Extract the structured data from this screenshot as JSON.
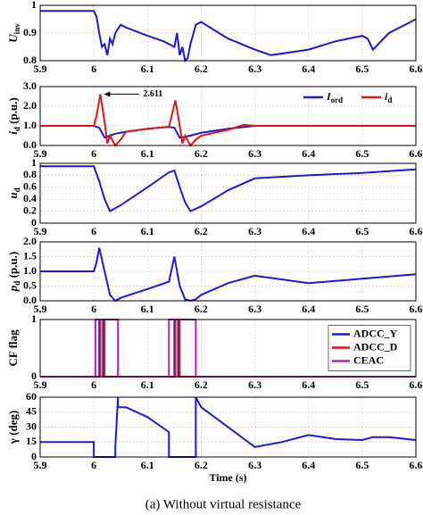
{
  "chart_data": [
    {
      "type": "line",
      "ylabel": {
        "symbol": "U",
        "sub": "inv"
      },
      "xlim": [
        5.9,
        6.6
      ],
      "xticks": [
        5.9,
        6,
        6.1,
        6.2,
        6.3,
        6.4,
        6.5,
        6.6
      ],
      "ylim": [
        0.8,
        1
      ],
      "yticks": [
        0.8,
        0.9,
        1
      ],
      "grid": true,
      "series": [
        {
          "color": "#1a1ad8",
          "x": [
            5.9,
            6.0,
            6.005,
            6.01,
            6.015,
            6.02,
            6.025,
            6.03,
            6.035,
            6.04,
            6.05,
            6.06,
            6.1,
            6.13,
            6.14,
            6.15,
            6.155,
            6.16,
            6.165,
            6.17,
            6.175,
            6.18,
            6.19,
            6.2,
            6.25,
            6.3,
            6.33,
            6.4,
            6.45,
            6.5,
            6.51,
            6.52,
            6.55,
            6.6
          ],
          "values": [
            0.98,
            0.98,
            0.96,
            0.9,
            0.85,
            0.86,
            0.82,
            0.88,
            0.86,
            0.9,
            0.93,
            0.92,
            0.89,
            0.87,
            0.86,
            0.85,
            0.9,
            0.82,
            0.85,
            0.8,
            0.81,
            0.86,
            0.93,
            0.94,
            0.88,
            0.84,
            0.82,
            0.84,
            0.87,
            0.89,
            0.88,
            0.84,
            0.9,
            0.95
          ]
        }
      ]
    },
    {
      "type": "line",
      "ylabel": {
        "symbol": "i",
        "sub": "d",
        "rest": " (p.u.)"
      },
      "xlim": [
        5.9,
        6.6
      ],
      "xticks": [
        5.9,
        6,
        6.1,
        6.2,
        6.3,
        6.4,
        6.5,
        6.6
      ],
      "ylim": [
        0,
        3
      ],
      "yticks": [
        {
          "value": 0,
          "label": "0.0"
        },
        {
          "value": 1,
          "label": "1.0"
        },
        {
          "value": 2,
          "label": "2.0"
        },
        {
          "value": 3,
          "label": "3.0"
        }
      ],
      "grid": true,
      "legend": "upper right",
      "annotation": {
        "text": "2.611",
        "x": 6.012,
        "y": 2.611
      },
      "series": [
        {
          "name": "I",
          "name_sub": "ord",
          "color": "#1a1ad8",
          "x": [
            5.9,
            6.0,
            6.01,
            6.02,
            6.04,
            6.06,
            6.1,
            6.14,
            6.15,
            6.16,
            6.18,
            6.2,
            6.25,
            6.3,
            6.6
          ],
          "values": [
            1,
            1,
            0.9,
            0.4,
            0.6,
            0.7,
            0.85,
            0.95,
            0.9,
            0.4,
            0.5,
            0.65,
            0.85,
            1,
            1
          ]
        },
        {
          "name": "i",
          "name_sub": "d",
          "color": "#e01515",
          "x": [
            5.9,
            6.0,
            6.005,
            6.012,
            6.02,
            6.025,
            6.03,
            6.04,
            6.05,
            6.06,
            6.1,
            6.14,
            6.145,
            6.152,
            6.16,
            6.165,
            6.17,
            6.18,
            6.19,
            6.2,
            6.25,
            6.28,
            6.3,
            6.6
          ],
          "values": [
            1,
            1,
            1.5,
            2.611,
            1.2,
            0.1,
            0.5,
            0,
            0.3,
            0.7,
            0.85,
            0.95,
            1.5,
            2.3,
            1.0,
            0.1,
            0.5,
            0,
            0.3,
            0.5,
            0.8,
            1.05,
            1,
            1
          ]
        }
      ]
    },
    {
      "type": "line",
      "ylabel": {
        "symbol": "u",
        "sub": "d"
      },
      "xlim": [
        5.9,
        6.6
      ],
      "xticks": [
        5.9,
        6,
        6.1,
        6.2,
        6.3,
        6.4,
        6.5,
        6.6
      ],
      "ylim": [
        0,
        1
      ],
      "yticks": [
        0,
        0.2,
        0.4,
        0.6,
        0.8,
        1
      ],
      "grid": true,
      "series": [
        {
          "color": "#1a1ad8",
          "x": [
            5.9,
            6.0,
            6.01,
            6.02,
            6.03,
            6.05,
            6.1,
            6.14,
            6.15,
            6.16,
            6.17,
            6.18,
            6.2,
            6.25,
            6.3,
            6.4,
            6.5,
            6.6
          ],
          "values": [
            0.95,
            0.95,
            0.7,
            0.4,
            0.2,
            0.3,
            0.6,
            0.85,
            0.88,
            0.6,
            0.35,
            0.2,
            0.28,
            0.55,
            0.75,
            0.8,
            0.84,
            0.9
          ]
        }
      ]
    },
    {
      "type": "line",
      "ylabel": {
        "symbol": "p",
        "sub": "d",
        "rest": " (p.u.)"
      },
      "xlim": [
        5.9,
        6.6
      ],
      "xticks": [
        5.9,
        6,
        6.1,
        6.2,
        6.3,
        6.4,
        6.5,
        6.6
      ],
      "ylim": [
        0,
        2
      ],
      "yticks": [
        {
          "value": 0,
          "label": "0.0"
        },
        {
          "value": 0.5,
          "label": "0.5"
        },
        {
          "value": 1,
          "label": "1.0"
        },
        {
          "value": 1.5,
          "label": "1.5"
        },
        {
          "value": 2,
          "label": "2.0"
        }
      ],
      "grid": true,
      "series": [
        {
          "color": "#1a1ad8",
          "x": [
            5.9,
            6.0,
            6.005,
            6.01,
            6.02,
            6.03,
            6.04,
            6.05,
            6.1,
            6.14,
            6.15,
            6.16,
            6.17,
            6.18,
            6.19,
            6.2,
            6.25,
            6.3,
            6.4,
            6.5,
            6.6
          ],
          "values": [
            1,
            1,
            1.3,
            1.8,
            1.0,
            0.2,
            0,
            0.1,
            0.4,
            0.65,
            1.5,
            0.5,
            0.05,
            0,
            0.05,
            0.2,
            0.6,
            0.85,
            0.6,
            0.75,
            0.9
          ]
        }
      ]
    },
    {
      "type": "line",
      "ylabel": {
        "symbol": "CF flag",
        "plain": true
      },
      "xlim": [
        5.9,
        6.6
      ],
      "xticks": [
        5.9,
        6,
        6.1,
        6.2,
        6.3,
        6.4,
        6.5,
        6.6
      ],
      "ylim": [
        0,
        1
      ],
      "yticks": [
        0,
        1
      ],
      "grid": true,
      "legend": "center right",
      "series": [
        {
          "name": "ADCC_Y",
          "color": "#1a1ad8",
          "x": [
            5.9,
            6.01,
            6.01,
            6.017,
            6.017,
            6.15,
            6.15,
            6.157,
            6.157,
            6.6
          ],
          "values": [
            0,
            0,
            1,
            1,
            0,
            0,
            1,
            1,
            0,
            0
          ]
        },
        {
          "name": "ADCC_D",
          "color": "#e01515",
          "x": [
            5.9,
            6.012,
            6.012,
            6.02,
            6.02,
            6.152,
            6.152,
            6.16,
            6.16,
            6.6
          ],
          "values": [
            0,
            0,
            1,
            1,
            0,
            0,
            1,
            1,
            0,
            0
          ]
        },
        {
          "name": "CEAC",
          "color": "#c21bc2",
          "x": [
            5.9,
            6.003,
            6.003,
            6.045,
            6.045,
            6.14,
            6.14,
            6.19,
            6.19,
            6.6
          ],
          "values": [
            0,
            0,
            1,
            1,
            0,
            0,
            1,
            1,
            0,
            0
          ]
        }
      ]
    },
    {
      "type": "line",
      "ylabel": {
        "symbol": "γ (deg)",
        "plain": true
      },
      "xlabel": "Time (s)",
      "xlim": [
        5.9,
        6.6
      ],
      "xticks": [
        5.9,
        6,
        6.1,
        6.2,
        6.3,
        6.4,
        6.5,
        6.6
      ],
      "ylim": [
        0,
        60
      ],
      "yticks": [
        0,
        15,
        30,
        45,
        60
      ],
      "grid": true,
      "series": [
        {
          "color": "#1a1ad8",
          "x": [
            5.9,
            6.0,
            6.0,
            6.04,
            6.04,
            6.045,
            6.045,
            6.06,
            6.1,
            6.14,
            6.14,
            6.19,
            6.19,
            6.2,
            6.25,
            6.3,
            6.35,
            6.4,
            6.45,
            6.5,
            6.52,
            6.55,
            6.6
          ],
          "values": [
            15,
            15,
            0,
            0,
            10,
            60,
            50,
            50,
            40,
            25,
            0,
            0,
            60,
            50,
            30,
            10,
            15,
            22,
            18,
            17,
            20,
            20,
            17
          ]
        }
      ]
    }
  ],
  "caption": "(a) Without virtual resistance"
}
